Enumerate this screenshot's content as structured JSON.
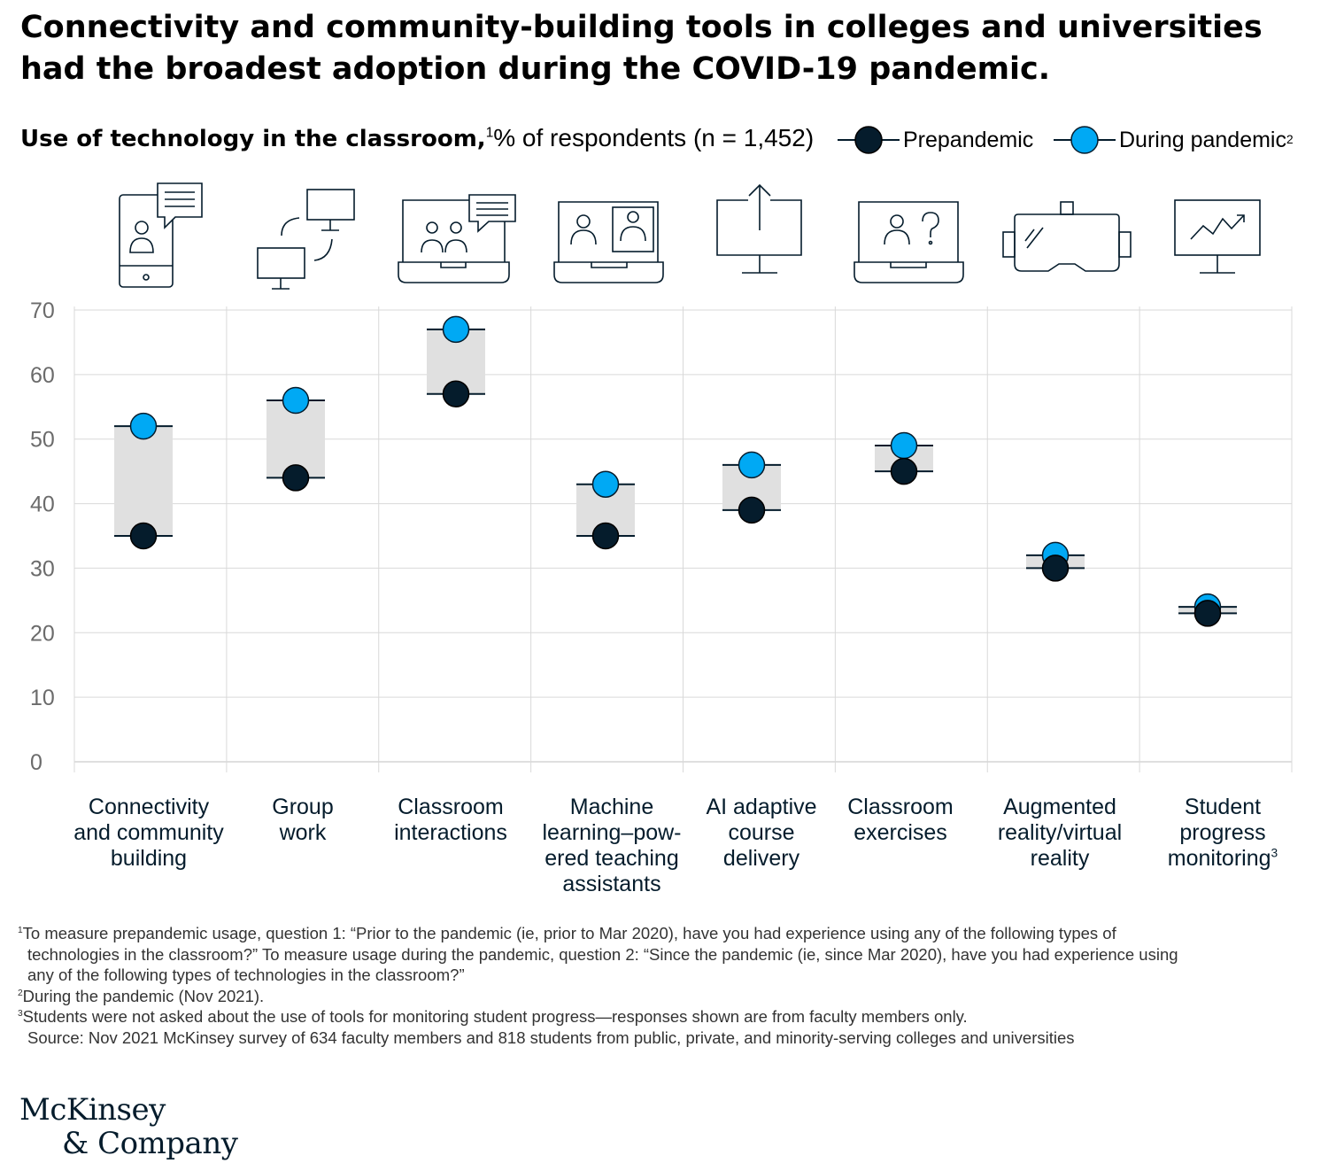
{
  "title": "Connectivity and community-building tools in colleges and universities had the broadest adoption during the COVID-19 pandemic.",
  "subtitle": {
    "bold": "Use of technology in the classroom,",
    "sup": "1",
    "unit": "% of respondents (n = 1,452)"
  },
  "legend": {
    "prepandemic": "Prepandemic",
    "during": "During pandemic",
    "during_sup": "2"
  },
  "colors": {
    "prepandemic": "#051c2c",
    "during": "#00a9f4",
    "range_fill": "#e0e0e0",
    "grid": "#d9d9d9"
  },
  "chart_data": {
    "type": "dumbbell",
    "ylim": [
      0,
      70
    ],
    "yticks": [
      0,
      10,
      20,
      30,
      40,
      50,
      60,
      70
    ],
    "categories": [
      {
        "label": [
          "Connectivity",
          "and community",
          "building"
        ],
        "icon": "phone-chat-icon",
        "prepandemic": 35,
        "during": 52
      },
      {
        "label": [
          "Group",
          "work"
        ],
        "icon": "connected-monitors-icon",
        "prepandemic": 44,
        "during": 56
      },
      {
        "label": [
          "Classroom",
          "interactions"
        ],
        "icon": "laptop-group-chat-icon",
        "prepandemic": 57,
        "during": 67
      },
      {
        "label": [
          "Machine",
          "learning–pow-",
          "ered teaching",
          "assistants"
        ],
        "icon": "laptop-video-call-icon",
        "prepandemic": 35,
        "during": 43
      },
      {
        "label": [
          "AI adaptive",
          "course",
          "delivery"
        ],
        "icon": "monitor-upload-icon",
        "prepandemic": 39,
        "during": 46
      },
      {
        "label": [
          "Classroom",
          "exercises"
        ],
        "icon": "laptop-question-icon",
        "prepandemic": 45,
        "during": 49
      },
      {
        "label": [
          "Augmented",
          "reality/virtual",
          "reality"
        ],
        "icon": "vr-headset-icon",
        "prepandemic": 30,
        "during": 32
      },
      {
        "label": [
          "Student",
          "progress",
          "monitoring"
        ],
        "label_sup": "3",
        "icon": "monitor-chart-icon",
        "prepandemic": 23,
        "during": 24
      }
    ],
    "series": [
      {
        "name": "Prepandemic",
        "values": [
          35,
          44,
          57,
          35,
          39,
          45,
          30,
          23
        ]
      },
      {
        "name": "During pandemic",
        "values": [
          52,
          56,
          67,
          43,
          46,
          49,
          32,
          24
        ]
      }
    ]
  },
  "footnotes": [
    {
      "sup": "1",
      "lines": [
        "To measure prepandemic usage, question 1: “Prior to the pandemic (ie, prior to Mar 2020), have you had experience using any of the following types of",
        "technologies in the classroom?” To measure usage during the pandemic, question 2: “Since the pandemic (ie, since Mar 2020), have you had experience using",
        "any of the following types of technologies in the classroom?”"
      ]
    },
    {
      "sup": "2",
      "lines": [
        "During the pandemic (Nov 2021)."
      ]
    },
    {
      "sup": "3",
      "lines": [
        "Students were not asked about the use of tools for monitoring student progress—responses shown are from faculty members only."
      ]
    }
  ],
  "source": "Source: Nov 2021 McKinsey survey of 634 faculty members and 818 students from public, private, and minority-serving colleges and universities",
  "logo": {
    "line1": "McKinsey",
    "line2": "& Company"
  }
}
